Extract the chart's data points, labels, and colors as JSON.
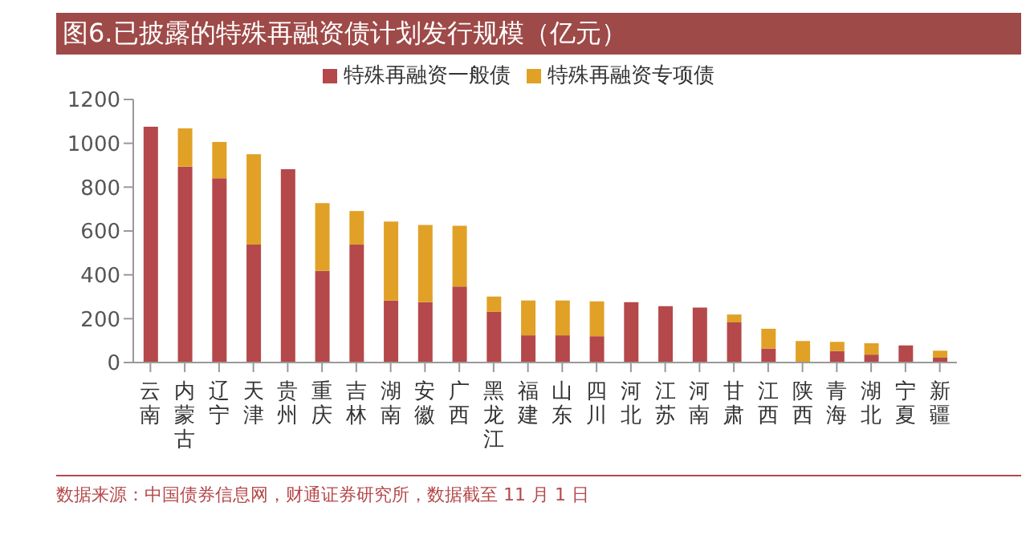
{
  "chart_data": {
    "type": "bar",
    "title": "图6.已披露的特殊再融资债计划发行规模（亿元）",
    "stacked": true,
    "categories": [
      "云南",
      "内蒙古",
      "辽宁",
      "天津",
      "贵州",
      "重庆",
      "吉林",
      "湖南",
      "安徽",
      "广西",
      "黑龙江",
      "福建",
      "山东",
      "四川",
      "河北",
      "江苏",
      "河南",
      "甘肃",
      "江西",
      "陕西",
      "青海",
      "湖北",
      "宁夏",
      "新疆"
    ],
    "series": [
      {
        "name": "特殊再融资一般债",
        "color": "#b5484a",
        "values": [
          1076,
          894,
          841,
          538,
          882,
          418,
          538,
          283,
          275,
          347,
          231,
          124,
          124,
          120,
          275,
          257,
          251,
          183,
          64,
          0,
          52,
          36,
          78,
          22
        ]
      },
      {
        "name": "特殊再融资专项债",
        "color": "#e0a126",
        "values": [
          0,
          174,
          165,
          412,
          0,
          309,
          153,
          360,
          352,
          277,
          70,
          159,
          159,
          159,
          0,
          0,
          0,
          36,
          90,
          98,
          42,
          52,
          0,
          32
        ]
      }
    ],
    "ylim": [
      0,
      1200
    ],
    "yticks": [
      0,
      200,
      400,
      600,
      800,
      1000,
      1200
    ],
    "legend": "top",
    "annotations": [
      "数据来源：中国债券信息网，财通证券研究所，数据截至 11 月 1 日"
    ]
  }
}
